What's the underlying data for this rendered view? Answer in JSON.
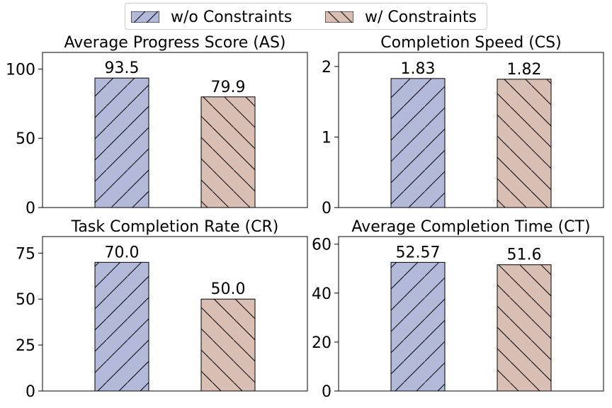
{
  "legend": {
    "items": [
      {
        "name": "w/o Constraints",
        "color": "#b3b9d9",
        "hatch": "forward"
      },
      {
        "name": "w/ Constraints",
        "color": "#d9bfb3",
        "hatch": "back"
      }
    ]
  },
  "chart_data": [
    {
      "type": "bar",
      "title": "Average Progress Score (AS)",
      "categories": [
        "w/o Constraints",
        "w/ Constraints"
      ],
      "values": [
        93.5,
        79.9
      ],
      "data_labels": [
        "93.5",
        "79.9"
      ],
      "yticks": [
        0,
        50,
        100
      ],
      "ylim": [
        0,
        112
      ],
      "grid": false
    },
    {
      "type": "bar",
      "title": "Completion Speed (CS)",
      "categories": [
        "w/o Constraints",
        "w/ Constraints"
      ],
      "values": [
        1.83,
        1.82
      ],
      "data_labels": [
        "1.83",
        "1.82"
      ],
      "yticks": [
        0,
        1,
        2
      ],
      "ylim": [
        0,
        2.2
      ],
      "grid": false
    },
    {
      "type": "bar",
      "title": "Task Completion Rate (CR)",
      "categories": [
        "w/o Constraints",
        "w/ Constraints"
      ],
      "values": [
        70.0,
        50.0
      ],
      "data_labels": [
        "70.0",
        "50.0"
      ],
      "yticks": [
        0,
        25,
        50,
        75
      ],
      "ylim": [
        0,
        84
      ],
      "grid": false
    },
    {
      "type": "bar",
      "title": "Average Completion Time (CT)",
      "categories": [
        "w/o Constraints",
        "w/ Constraints"
      ],
      "values": [
        52.57,
        51.6
      ],
      "data_labels": [
        "52.57",
        "51.6"
      ],
      "yticks": [
        0,
        20,
        40,
        60
      ],
      "ylim": [
        0,
        63.1
      ],
      "grid": false
    }
  ]
}
